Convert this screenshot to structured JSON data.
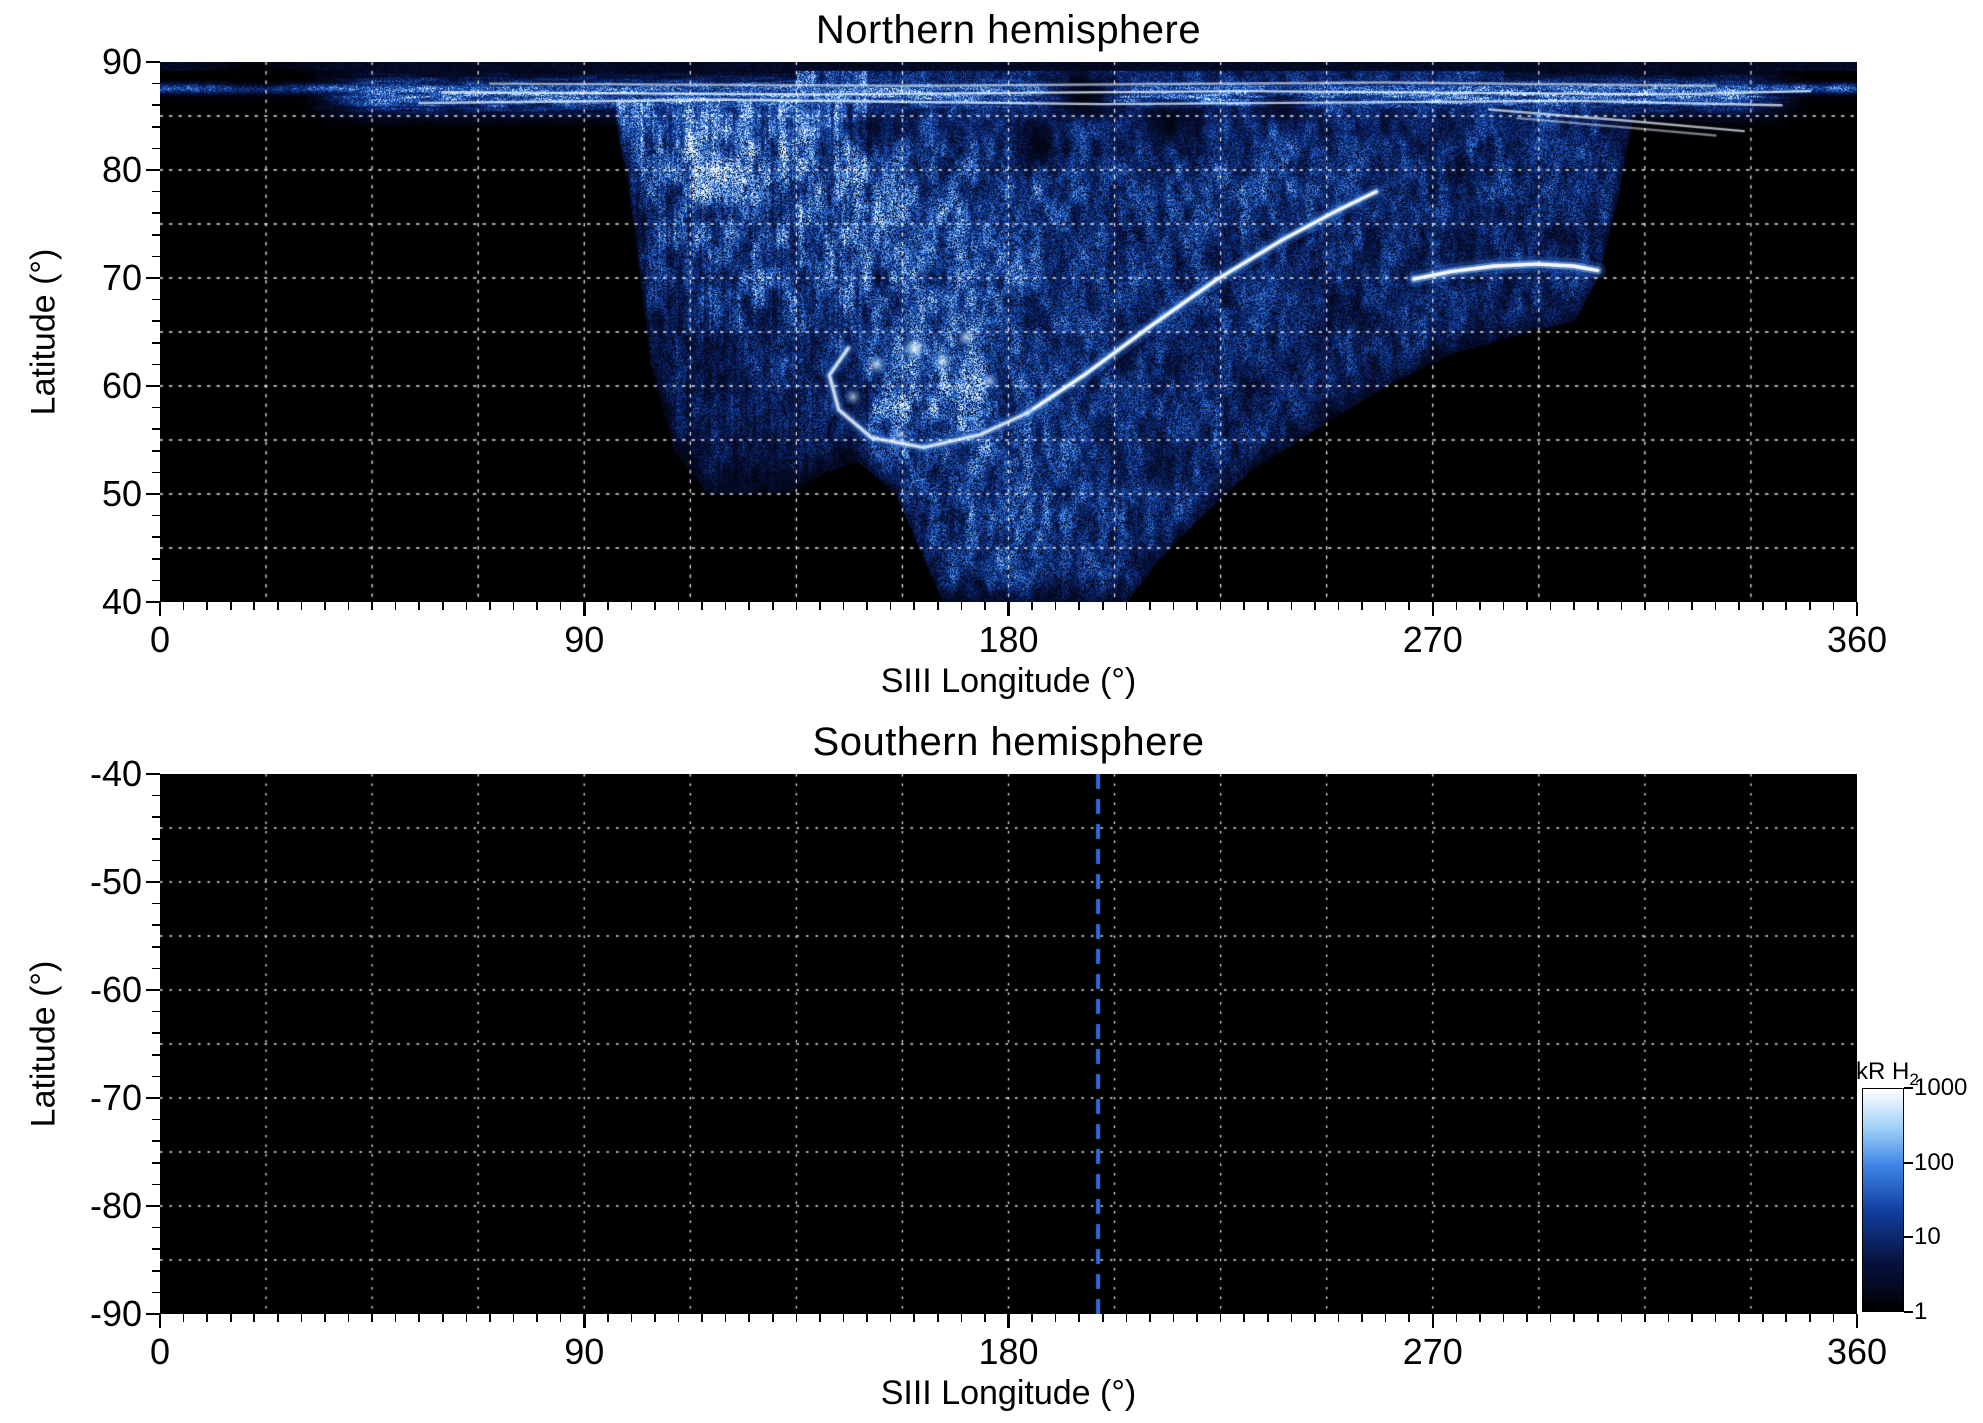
{
  "page": {
    "background": "#ffffff"
  },
  "colorbar": {
    "label": "kR H",
    "label_sub": "2",
    "scale": "log",
    "range": [
      1,
      1000
    ],
    "ticks": [
      1000,
      100,
      10,
      1
    ],
    "gradient": [
      {
        "t": 0.0,
        "color": "#000000"
      },
      {
        "t": 0.22,
        "color": "#071240"
      },
      {
        "t": 0.45,
        "color": "#123f9e"
      },
      {
        "t": 0.65,
        "color": "#3c82e6"
      },
      {
        "t": 0.82,
        "color": "#9ccff8"
      },
      {
        "t": 1.0,
        "color": "#ffffff"
      }
    ]
  },
  "chart_data": [
    {
      "type": "heatmap",
      "title": "Northern hemisphere",
      "xlabel": "SIII Longitude (°)",
      "ylabel": "Latitude (°)",
      "xlim": [
        0,
        360
      ],
      "ylim": [
        40,
        90
      ],
      "xticks": [
        0,
        90,
        180,
        270,
        360
      ],
      "yticks": [
        90,
        80,
        70,
        60,
        50,
        40
      ],
      "x_minor_step": 5,
      "y_minor_step": 2,
      "grid": {
        "style": "dotted",
        "color": "#ffffff",
        "x_step": 22.5,
        "y_step": 5
      },
      "background": "#000000",
      "features": {
        "lower_boundary": [
          [
            0,
            95
          ],
          [
            92,
            95
          ],
          [
            96,
            86
          ],
          [
            100,
            76
          ],
          [
            104,
            62
          ],
          [
            109,
            54
          ],
          [
            116,
            50
          ],
          [
            133,
            50
          ],
          [
            141,
            52
          ],
          [
            148,
            53
          ],
          [
            156,
            50
          ],
          [
            161,
            45
          ],
          [
            166,
            40
          ],
          [
            205,
            40
          ],
          [
            212,
            44
          ],
          [
            221,
            48
          ],
          [
            231,
            52
          ],
          [
            245,
            56
          ],
          [
            260,
            60
          ],
          [
            274,
            63
          ],
          [
            290,
            65
          ],
          [
            300,
            66
          ],
          [
            305,
            70
          ],
          [
            309,
            77
          ],
          [
            313,
            86
          ],
          [
            317,
            95
          ],
          [
            360,
            95
          ]
        ],
        "polar_band": {
          "lat_center": 87,
          "lat_sigma": 1.7,
          "lon_start": 36,
          "lon_end": 344,
          "thin_line_lat": 87.6
        },
        "bright_blobs": [
          {
            "lon": 170,
            "lat": 74,
            "slon": 30,
            "slat": 9,
            "amp": 0.16
          },
          {
            "lon": 118,
            "lat": 80,
            "slon": 10,
            "slat": 5,
            "amp": 0.2
          },
          {
            "lon": 150,
            "lat": 73,
            "slon": 18,
            "slat": 7,
            "amp": 0.12
          },
          {
            "lon": 235,
            "lat": 80,
            "slon": 18,
            "slat": 5,
            "amp": 0.1
          },
          {
            "lon": 164,
            "lat": 59,
            "slon": 16,
            "slat": 5.5,
            "amp": 0.38
          },
          {
            "lon": 183,
            "lat": 47,
            "slon": 20,
            "slat": 9,
            "amp": 0.13
          }
        ],
        "dark_blobs": [
          {
            "lon": 196,
            "lat": 87,
            "slon": 7,
            "slat": 2.2,
            "amp": 0.9
          },
          {
            "lon": 214,
            "lat": 84.5,
            "slon": 6,
            "slat": 2.0,
            "amp": 0.75
          },
          {
            "lon": 186,
            "lat": 82,
            "slon": 5,
            "slat": 2.0,
            "amp": 0.65
          },
          {
            "lon": 150,
            "lat": 84,
            "slon": 4,
            "slat": 1.5,
            "amp": 0.55
          },
          {
            "lon": 238,
            "lat": 86,
            "slon": 5,
            "slat": 1.8,
            "amp": 0.6
          },
          {
            "lon": 20,
            "lat": 89,
            "slon": 9,
            "slat": 1.6,
            "amp": 1.0
          }
        ],
        "arcs": [
          {
            "name": "main-arc",
            "points": [
              [
                184,
                57.5
              ],
              [
                196,
                61
              ],
              [
                210,
                65.5
              ],
              [
                224,
                69.8
              ],
              [
                238,
                73.5
              ],
              [
                250,
                76.3
              ],
              [
                258,
                78
              ]
            ],
            "width": 3.2,
            "brightness": 1.0
          },
          {
            "name": "hook-arc",
            "points": [
              [
                184,
                57.5
              ],
              [
                174,
                55.5
              ],
              [
                162,
                54.3
              ],
              [
                151,
                55.2
              ],
              [
                144,
                57.8
              ],
              [
                142,
                61
              ],
              [
                146,
                63.5
              ]
            ],
            "width": 3.0,
            "brightness": 0.8
          },
          {
            "name": "east-arc",
            "points": [
              [
                266,
                69.9
              ],
              [
                274,
                70.6
              ],
              [
                283,
                71.1
              ],
              [
                292,
                71.3
              ],
              [
                300,
                71.1
              ],
              [
                305,
                70.7
              ]
            ],
            "width": 3.6,
            "brightness": 1.0
          }
        ],
        "band_streaks": [
          {
            "points": [
              [
                55,
                86.2
              ],
              [
                120,
                86.5
              ],
              [
                200,
                86.1
              ],
              [
                300,
                86.4
              ],
              [
                344,
                86.0
              ]
            ],
            "alpha": 0.75
          },
          {
            "points": [
              [
                60,
                87.2
              ],
              [
                140,
                87.0
              ],
              [
                230,
                87.3
              ],
              [
                320,
                87.0
              ],
              [
                350,
                87.3
              ]
            ],
            "alpha": 0.8
          },
          {
            "points": [
              [
                70,
                88.0
              ],
              [
                160,
                87.8
              ],
              [
                260,
                88.1
              ],
              [
                330,
                87.8
              ]
            ],
            "alpha": 0.6
          },
          {
            "points": [
              [
                282,
                85.6
              ],
              [
                310,
                84.6
              ],
              [
                336,
                83.6
              ]
            ],
            "alpha": 0.7
          },
          {
            "points": [
              [
                288,
                84.8
              ],
              [
                312,
                83.9
              ],
              [
                330,
                83.2
              ]
            ],
            "alpha": 0.5
          }
        ],
        "bright_spots": [
          {
            "lon": 160,
            "lat": 63.5,
            "r": 9,
            "a": 0.95
          },
          {
            "lon": 152,
            "lat": 62.0,
            "r": 7,
            "a": 0.8
          },
          {
            "lon": 166,
            "lat": 62.3,
            "r": 7,
            "a": 0.85
          },
          {
            "lon": 147,
            "lat": 59.0,
            "r": 6,
            "a": 0.7
          },
          {
            "lon": 171,
            "lat": 64.5,
            "r": 7,
            "a": 0.75
          },
          {
            "lon": 176,
            "lat": 60.5,
            "r": 6,
            "a": 0.7
          },
          {
            "lon": 157,
            "lat": 55.5,
            "r": 5,
            "a": 0.6
          }
        ]
      }
    },
    {
      "type": "heatmap",
      "title": "Southern hemisphere",
      "xlabel": "SIII Longitude (°)",
      "ylabel": "Latitude (°)",
      "xlim": [
        0,
        360
      ],
      "ylim": [
        -90,
        -40
      ],
      "xticks": [
        0,
        90,
        180,
        270,
        360
      ],
      "yticks": [
        -40,
        -50,
        -60,
        -70,
        -80,
        -90
      ],
      "x_minor_step": 5,
      "y_minor_step": 2,
      "grid": {
        "style": "dotted",
        "color": "#ffffff",
        "x_step": 22.5,
        "y_step": 5
      },
      "background": "#000000",
      "annotations": [
        {
          "type": "vline",
          "x": 199,
          "color": "#2e6be0",
          "style": "dashed"
        }
      ],
      "features": null
    }
  ]
}
